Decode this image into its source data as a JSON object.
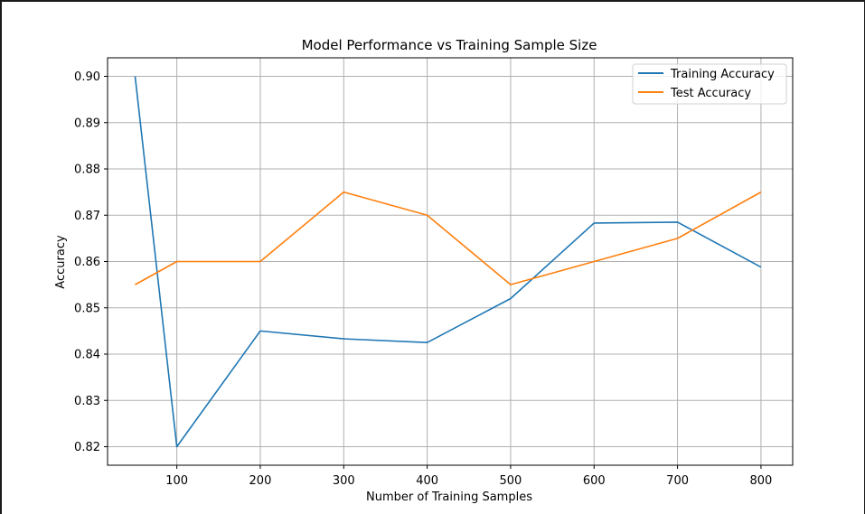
{
  "chart_data": {
    "type": "line",
    "title": "Model Performance vs Training Sample Size",
    "xlabel": "Number of Training Samples",
    "ylabel": "Accuracy",
    "x": [
      50,
      100,
      200,
      300,
      400,
      500,
      600,
      700,
      800
    ],
    "xlim": [
      17,
      838
    ],
    "ylim": [
      0.816,
      0.904
    ],
    "xticks": [
      100,
      200,
      300,
      400,
      500,
      600,
      700,
      800
    ],
    "yticks": [
      0.82,
      0.83,
      0.84,
      0.85,
      0.86,
      0.87,
      0.88,
      0.89,
      0.9
    ],
    "ytick_labels": [
      "0.82",
      "0.83",
      "0.84",
      "0.85",
      "0.86",
      "0.87",
      "0.88",
      "0.89",
      "0.90"
    ],
    "grid": true,
    "legend_position": "top-right",
    "series": [
      {
        "name": "Training Accuracy",
        "color": "#1f77b4",
        "values": [
          0.9,
          0.82,
          0.845,
          0.8433,
          0.8425,
          0.852,
          0.8683,
          0.8685,
          0.8588
        ]
      },
      {
        "name": "Test Accuracy",
        "color": "#ff7f0e",
        "values": [
          0.855,
          0.86,
          0.86,
          0.875,
          0.87,
          0.855,
          0.86,
          0.865,
          0.875
        ]
      }
    ]
  }
}
